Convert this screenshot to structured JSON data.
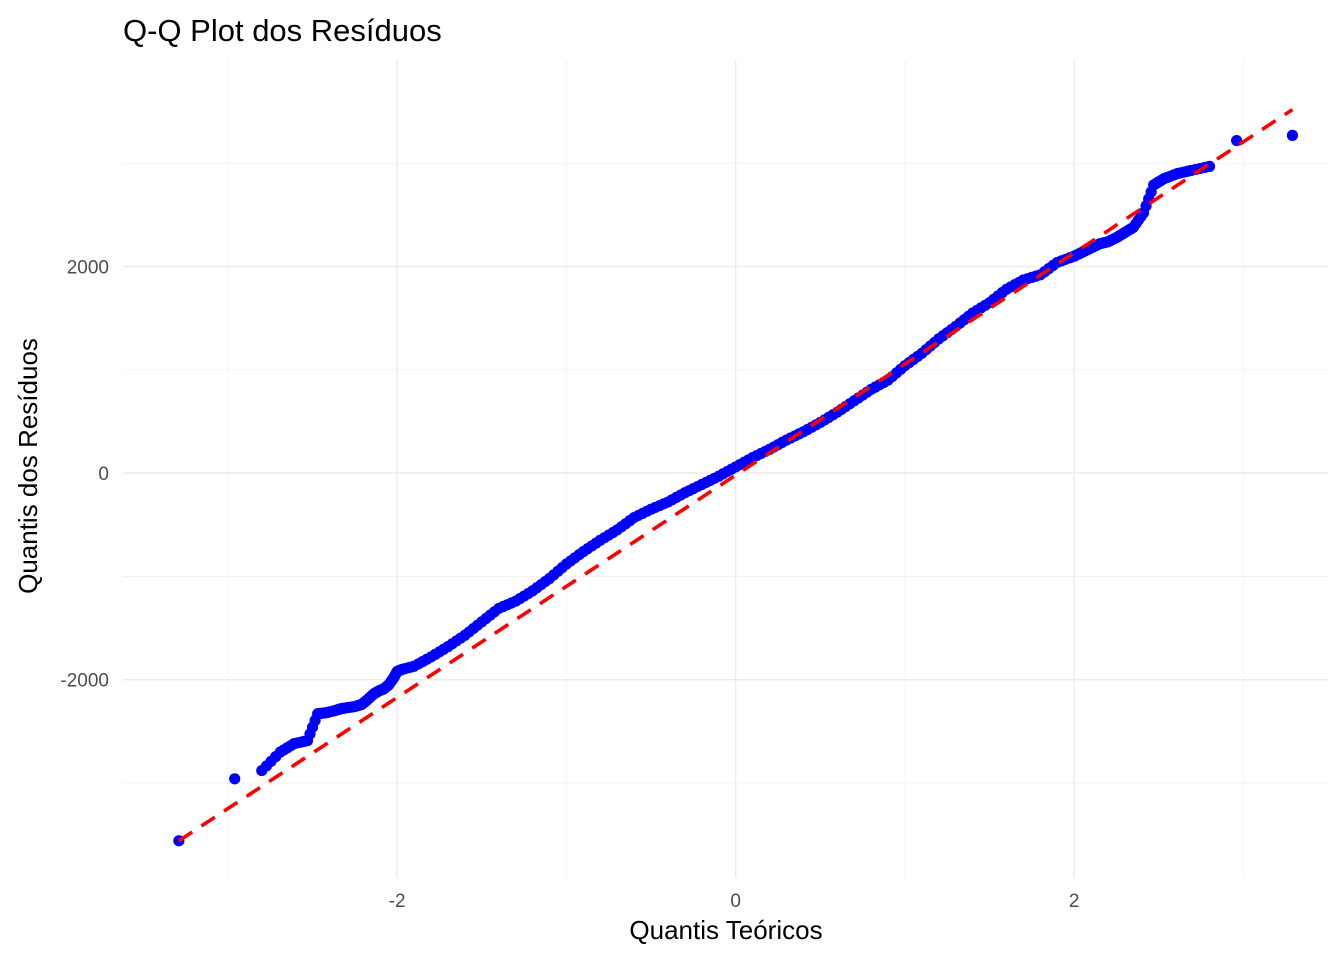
{
  "chart_data": {
    "type": "scatter",
    "title": "Q-Q Plot dos Resíduos",
    "xlabel": "Quantis Teóricos",
    "ylabel": "Quantis dos Resíduos",
    "xlim": [
      -3.62,
      3.5
    ],
    "ylim": [
      -3920,
      4000
    ],
    "x_ticks": [
      -2,
      0,
      2
    ],
    "x_tick_labels": [
      "-2",
      "0",
      "2"
    ],
    "y_ticks": [
      -2000,
      0,
      2000
    ],
    "y_tick_labels": [
      "-2000",
      "0",
      "2000"
    ],
    "grid": true,
    "point_color": "#0000ff",
    "line_color": "#ff0000",
    "reference_line": {
      "style": "dashed",
      "x": [
        -3.29,
        3.29
      ],
      "y": [
        -3560,
        3520
      ]
    },
    "points": {
      "x": [
        -3.29,
        -2.96,
        -2.8,
        -2.69,
        -2.61,
        -2.53,
        -2.47,
        -2.42,
        -2.37,
        -2.33,
        -2.29,
        -2.25,
        -2.21,
        -2.18,
        -2.14,
        -2.11,
        -2.08,
        -2.05,
        -2.02,
        -2.0,
        -1.97,
        -1.9,
        -1.8,
        -1.7,
        -1.6,
        -1.5,
        -1.4,
        -1.3,
        -1.2,
        -1.1,
        -1.0,
        -0.9,
        -0.8,
        -0.7,
        -0.6,
        -0.5,
        -0.4,
        -0.3,
        -0.2,
        -0.1,
        0.0,
        0.1,
        0.2,
        0.3,
        0.4,
        0.5,
        0.6,
        0.7,
        0.8,
        0.9,
        1.0,
        1.1,
        1.2,
        1.3,
        1.4,
        1.5,
        1.6,
        1.7,
        1.8,
        1.9,
        2.0,
        2.05,
        2.1,
        2.15,
        2.2,
        2.25,
        2.3,
        2.35,
        2.41,
        2.47,
        2.53,
        2.61,
        2.69,
        2.8,
        2.96,
        3.29
      ],
      "y": [
        -3560,
        -2960,
        -2880,
        -2700,
        -2620,
        -2590,
        -2330,
        -2320,
        -2300,
        -2280,
        -2270,
        -2260,
        -2240,
        -2200,
        -2140,
        -2110,
        -2090,
        -2050,
        -1980,
        -1920,
        -1900,
        -1870,
        -1780,
        -1680,
        -1570,
        -1440,
        -1310,
        -1240,
        -1140,
        -1020,
        -880,
        -760,
        -650,
        -550,
        -430,
        -350,
        -280,
        -190,
        -110,
        -30,
        60,
        150,
        230,
        320,
        400,
        490,
        590,
        700,
        810,
        900,
        1040,
        1160,
        1300,
        1420,
        1550,
        1650,
        1780,
        1870,
        1920,
        2040,
        2100,
        2140,
        2180,
        2220,
        2240,
        2280,
        2330,
        2380,
        2520,
        2790,
        2850,
        2900,
        2930,
        2970,
        3220,
        3270
      ]
    }
  }
}
